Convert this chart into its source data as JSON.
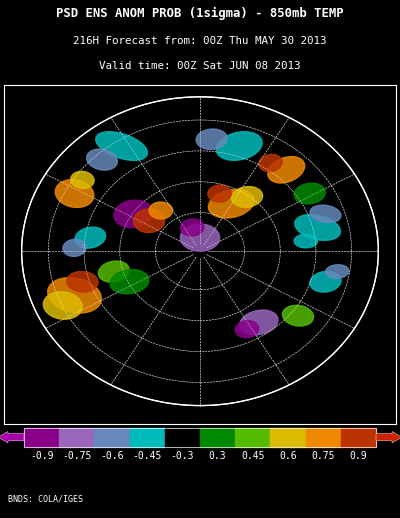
{
  "title_line1": "PSD ENS ANOM PROB (1sigma) - 850mb TEMP",
  "title_line2": "216H Forecast from: 00Z Thu MAY 30 2013",
  "title_line3": "Valid time: 00Z Sat JUN 08 2013",
  "credit_text": "BNDS: COLA/IGES",
  "background_color": "#000000",
  "text_color": "#ffffff",
  "colorbar_colors": [
    "#880088",
    "#9966bb",
    "#6688bb",
    "#00bbbb",
    "#000000",
    "#008800",
    "#55bb00",
    "#ddbb00",
    "#ee8800",
    "#bb3300"
  ],
  "colorbar_labels": [
    "-0.9",
    "-0.75",
    "-0.6",
    "-0.45",
    "-0.3",
    "0.3",
    "0.45",
    "0.6",
    "0.75",
    "0.9"
  ],
  "arrow_left_color": "#aa00aa",
  "arrow_right_color": "#cc2200",
  "title_fontsize": 8.8,
  "subtitle_fontsize": 7.8,
  "credit_fontsize": 6.0,
  "label_fontsize": 7.0,
  "map_border_color": "#ffffff",
  "grid_color": "#ffffff",
  "grid_alpha": 0.6,
  "grid_lw": 0.4,
  "land_color": "#ffffff",
  "map_bg": "#000000"
}
